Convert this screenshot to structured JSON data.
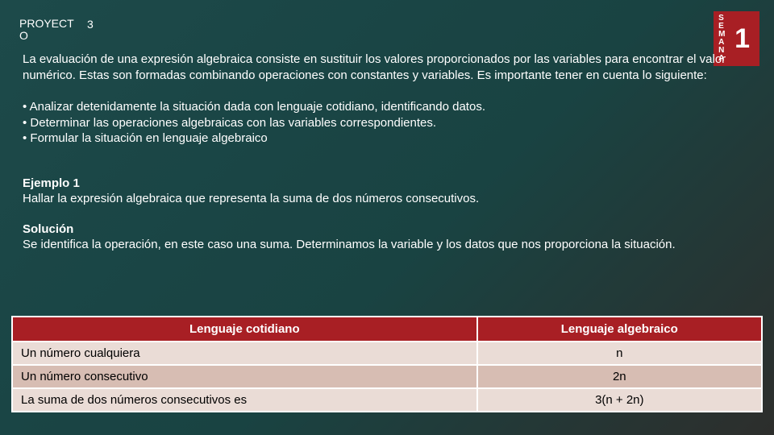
{
  "header": {
    "proyecto_label_line1": "PROYECT",
    "proyecto_label_line2": "O",
    "proyecto_num": "3",
    "semana_letters": [
      "S",
      "E",
      "M",
      "A",
      "N",
      "A"
    ],
    "semana_num": "1"
  },
  "body": {
    "intro": "La evaluación de una expresión algebraica consiste en sustituir los valores proporcionados por las variables para encontrar el valor numérico. Estas son formadas combinando operaciones con constantes y variables. Es importante tener en cuenta lo siguiente:",
    "bullet1": "• Analizar detenidamente la situación dada con lenguaje cotidiano, identificando datos.",
    "bullet2": "• Determinar las operaciones algebraicas con las variables correspondientes.",
    "bullet3": "• Formular la situación en lenguaje algebraico",
    "example_label": "Ejemplo 1",
    "example_text": "Hallar la expresión algebraica que representa la suma de dos números consecutivos.",
    "solution_label": "Solución",
    "solution_text": "Se identifica la operación, en este caso una suma. Determinamos la variable y los datos que nos proporciona la situación."
  },
  "table": {
    "header_left": "Lenguaje cotidiano",
    "header_right": "Lenguaje algebraico",
    "rows": [
      {
        "left": "Un número cualquiera",
        "right": "n"
      },
      {
        "left": "Un número consecutivo",
        "right": "2n"
      },
      {
        "left": "La suma de dos números consecutivos es",
        "right": "3(n + 2n)"
      }
    ],
    "row_bg_odd": "#eadcd6",
    "row_bg_even": "#d7bdb3",
    "header_bg": "#a81f24",
    "border_color": "#ffffff"
  },
  "colors": {
    "slide_bg_from": "#1d4a4a",
    "slide_bg_to": "#2d2e2c",
    "text": "#ffffff",
    "accent": "#a81f24"
  }
}
